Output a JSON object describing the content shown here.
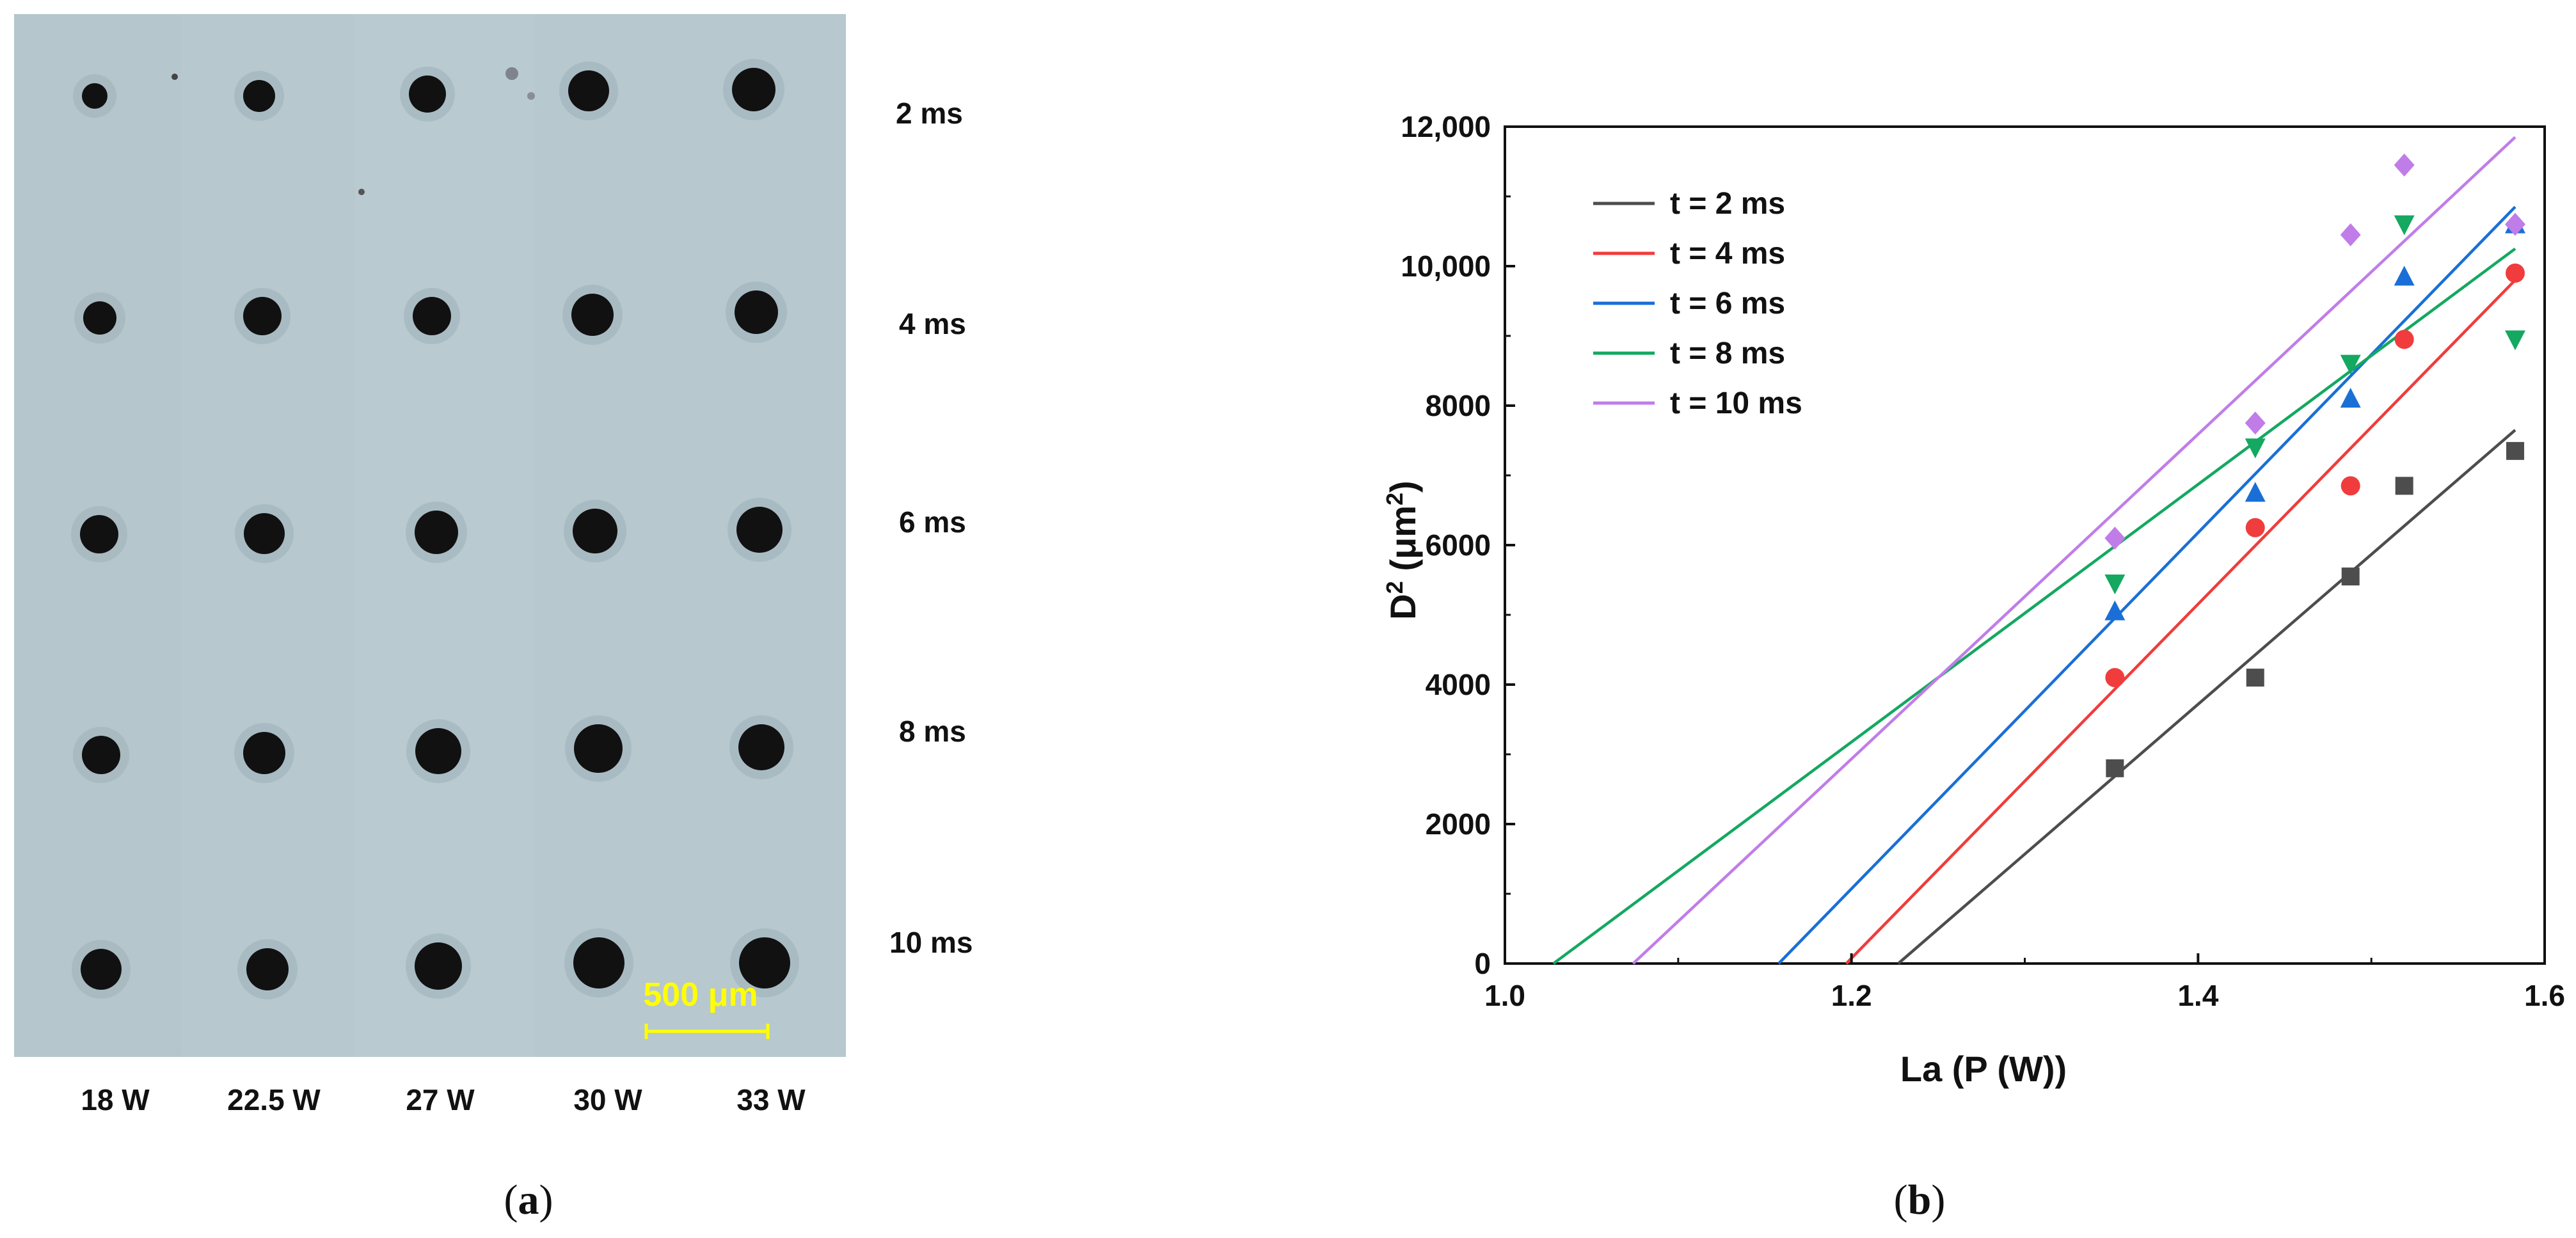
{
  "panel_a": {
    "pulse_durations": [
      "2 ms",
      "4 ms",
      "6 ms",
      "8 ms",
      "10 ms"
    ],
    "powers": [
      "18 W",
      "22.5 W",
      "27 W",
      "30 W",
      "33 W"
    ],
    "scale_bar_label": "500 μm",
    "caption_open": "(",
    "caption_letter": "a",
    "caption_close": ")",
    "colors": {
      "plate": "#b7c8cf",
      "spot": "#111111",
      "scale_bar": "#ffff00"
    }
  },
  "panel_b": {
    "caption_open": "(",
    "caption_letter": "b",
    "caption_close": ")"
  },
  "chart_data": {
    "type": "scatter",
    "xlabel": "La (P (W))",
    "ylabel_main": "D",
    "ylabel_sup": "2",
    "ylabel_unit_open": " (μm",
    "ylabel_unit_sup": "2",
    "ylabel_unit_close": ")",
    "xlim": [
      1.0,
      1.6
    ],
    "ylim": [
      0,
      12000
    ],
    "x_ticks": [
      1.0,
      1.2,
      1.4,
      1.6
    ],
    "x_tick_labels": [
      "1.0",
      "1.2",
      "1.4",
      "1.6"
    ],
    "y_ticks": [
      0,
      2000,
      4000,
      6000,
      8000,
      10000,
      12000
    ],
    "y_tick_labels": [
      "0",
      "2000",
      "4000",
      "6000",
      "8000",
      "10,000",
      "12,000"
    ],
    "grid": false,
    "legend_position": "top-left",
    "series": [
      {
        "name": "t = 2 ms",
        "color": "#4d4d4d",
        "marker": "square",
        "x": [
          1.352,
          1.433,
          1.488,
          1.519,
          1.583
        ],
        "y": [
          2800,
          4100,
          5550,
          6850,
          7350
        ],
        "fit": {
          "x": [
            1.227,
            1.583
          ],
          "y": [
            0,
            7650
          ]
        }
      },
      {
        "name": "t = 4 ms",
        "color": "#f03c3c",
        "marker": "circle",
        "x": [
          1.352,
          1.433,
          1.488,
          1.519,
          1.583
        ],
        "y": [
          4100,
          6250,
          6850,
          8950,
          9900
        ],
        "fit": {
          "x": [
            1.197,
            1.583
          ],
          "y": [
            0,
            9800
          ]
        }
      },
      {
        "name": "t = 6 ms",
        "color": "#1a6fd6",
        "marker": "triangle-up",
        "x": [
          1.352,
          1.433,
          1.488,
          1.519,
          1.583
        ],
        "y": [
          5050,
          6750,
          8100,
          9850,
          10600
        ],
        "fit": {
          "x": [
            1.158,
            1.583
          ],
          "y": [
            0,
            10850
          ]
        }
      },
      {
        "name": "t = 8 ms",
        "color": "#14a860",
        "marker": "triangle-down",
        "x": [
          1.352,
          1.433,
          1.488,
          1.519,
          1.583
        ],
        "y": [
          5450,
          7400,
          8600,
          10600,
          8950
        ],
        "fit": {
          "x": [
            1.028,
            1.583
          ],
          "y": [
            0,
            10250
          ]
        }
      },
      {
        "name": "t = 10 ms",
        "color": "#c07de8",
        "marker": "diamond",
        "x": [
          1.352,
          1.433,
          1.488,
          1.519,
          1.583
        ],
        "y": [
          6100,
          7750,
          10450,
          11450,
          10600
        ],
        "fit": {
          "x": [
            1.074,
            1.583
          ],
          "y": [
            0,
            11850
          ]
        }
      }
    ]
  }
}
